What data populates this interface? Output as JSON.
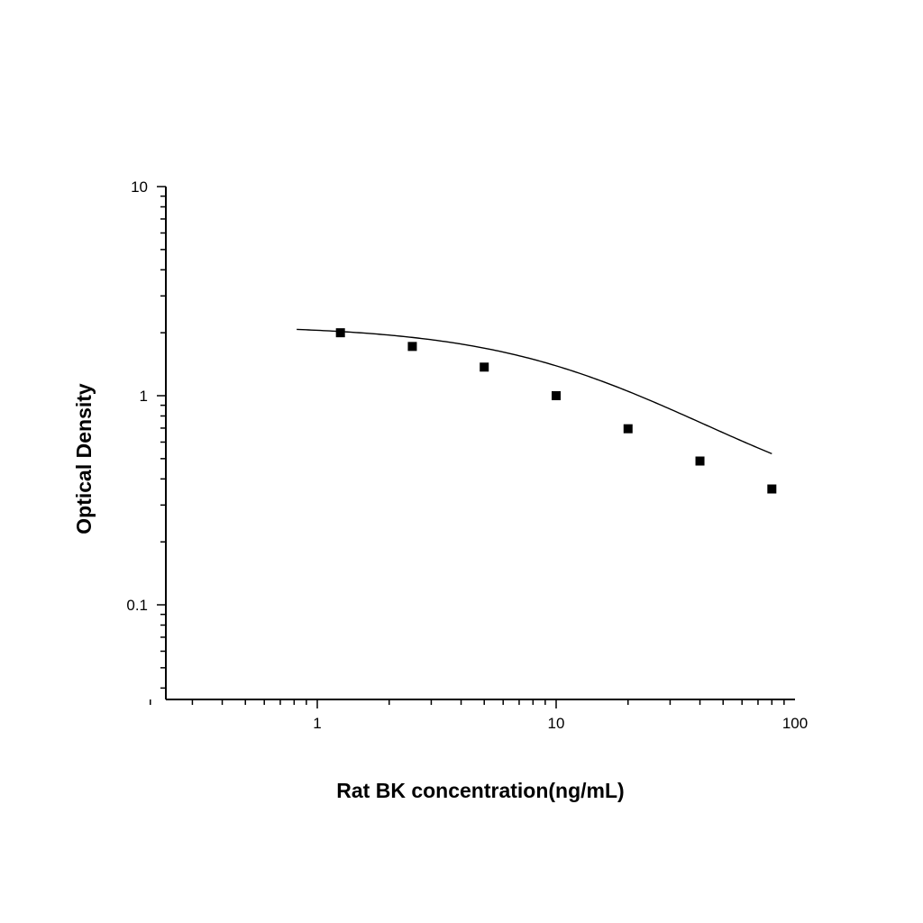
{
  "chart_data": {
    "type": "scatter",
    "title": "",
    "xlabel": "Rat BK concentration(ng/mL)",
    "ylabel": "Optical Density",
    "xscale": "log",
    "yscale": "log",
    "xlim": [
      0.2,
      100
    ],
    "ylim": [
      0.035,
      10
    ],
    "xticks": [
      {
        "value": 1,
        "label": "1"
      },
      {
        "value": 10,
        "label": "10"
      },
      {
        "value": 100,
        "label": "100"
      }
    ],
    "yticks": [
      {
        "value": 0.1,
        "label": "0.1"
      },
      {
        "value": 1,
        "label": "1"
      },
      {
        "value": 10,
        "label": "10"
      }
    ],
    "grid": false,
    "legend": "none",
    "marker_color": "#000000",
    "series": [
      {
        "points": [
          {
            "x": 1.25,
            "y": 2.0
          },
          {
            "x": 2.5,
            "y": 1.72
          },
          {
            "x": 5,
            "y": 1.37
          },
          {
            "x": 10,
            "y": 1.0
          },
          {
            "x": 20,
            "y": 0.695
          },
          {
            "x": 40,
            "y": 0.487
          },
          {
            "x": 80,
            "y": 0.358
          }
        ]
      }
    ],
    "fit_curve": {
      "model": "4PL",
      "top": 2.17,
      "bottom": 0.245,
      "ec50": 14.5,
      "hill": 1.03,
      "x_range": [
        0.82,
        80
      ]
    }
  }
}
